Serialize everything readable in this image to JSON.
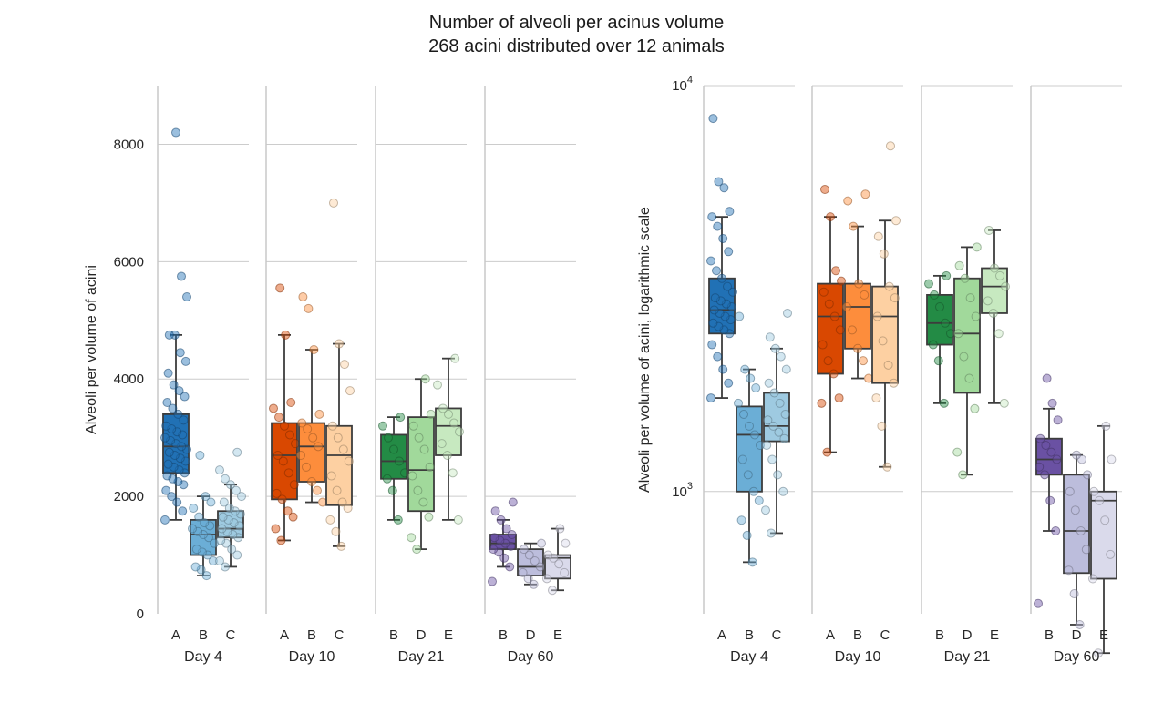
{
  "title": "Number of alveoli per acinus volume",
  "subtitle": "268 acini distributed over 12 animals",
  "chart_data": [
    {
      "type": "box",
      "yscale": "linear",
      "ylabel": "Alveoli per volume of acini",
      "ylim": [
        0,
        9000
      ],
      "yticks": [
        0,
        2000,
        4000,
        6000,
        8000
      ],
      "grid": true,
      "panels": [
        {
          "label": "Day 4",
          "groups": [
            {
              "name": "A",
              "color": "#2171b5",
              "whislo": 1600,
              "q1": 2400,
              "med": 2850,
              "q3": 3400,
              "whishi": 4750,
              "points": [
                1600,
                1750,
                1900,
                2000,
                2100,
                2200,
                2250,
                2300,
                2350,
                2400,
                2450,
                2500,
                2550,
                2600,
                2650,
                2700,
                2750,
                2800,
                2850,
                2900,
                2950,
                3000,
                3050,
                3100,
                3150,
                3200,
                3300,
                3400,
                3500,
                3600,
                3700,
                3800,
                3900,
                4100,
                4300,
                4450,
                4750,
                4750,
                5400,
                5750,
                8200
              ]
            },
            {
              "name": "B",
              "color": "#6baed6",
              "whislo": 650,
              "q1": 1000,
              "med": 1350,
              "q3": 1600,
              "whishi": 2000,
              "points": [
                650,
                750,
                800,
                900,
                1000,
                1050,
                1100,
                1200,
                1300,
                1350,
                1400,
                1450,
                1500,
                1550,
                1650,
                1800,
                1900,
                2000,
                2700
              ]
            },
            {
              "name": "C",
              "color": "#9ecae1",
              "whislo": 800,
              "q1": 1300,
              "med": 1450,
              "q3": 1750,
              "whishi": 2200,
              "points": [
                800,
                900,
                1000,
                1100,
                1200,
                1250,
                1300,
                1350,
                1400,
                1450,
                1500,
                1550,
                1600,
                1650,
                1700,
                1750,
                1800,
                1900,
                2000,
                2100,
                2200,
                2300,
                2450,
                2750
              ]
            }
          ]
        },
        {
          "label": "Day 10",
          "groups": [
            {
              "name": "A",
              "color": "#d94801",
              "whislo": 1250,
              "q1": 1950,
              "med": 2700,
              "q3": 3250,
              "whishi": 4750,
              "points": [
                1250,
                1450,
                1650,
                1750,
                1950,
                2050,
                2200,
                2400,
                2600,
                2700,
                2900,
                3050,
                3200,
                3350,
                3500,
                3600,
                4750,
                5550
              ]
            },
            {
              "name": "B",
              "color": "#fd8d3c",
              "whislo": 1900,
              "q1": 2250,
              "med": 2850,
              "q3": 3250,
              "whishi": 4500,
              "points": [
                1900,
                2100,
                2250,
                2500,
                2700,
                2850,
                3000,
                3150,
                3250,
                3400,
                4500,
                5200,
                5400
              ]
            },
            {
              "name": "C",
              "color": "#fdd0a2",
              "whislo": 1150,
              "q1": 1850,
              "med": 2700,
              "q3": 3200,
              "whishi": 4600,
              "points": [
                1150,
                1400,
                1600,
                1800,
                1900,
                2100,
                2350,
                2600,
                2800,
                3000,
                3200,
                3800,
                4250,
                4600,
                7000
              ]
            }
          ]
        },
        {
          "label": "Day 21",
          "groups": [
            {
              "name": "B",
              "color": "#238b45",
              "whislo": 1600,
              "q1": 2300,
              "med": 2600,
              "q3": 3050,
              "whishi": 3350,
              "points": [
                1600,
                2100,
                2300,
                2400,
                2600,
                2800,
                3000,
                3200,
                3350
              ]
            },
            {
              "name": "D",
              "color": "#a1d99b",
              "whislo": 1100,
              "q1": 1750,
              "med": 2450,
              "q3": 3350,
              "whishi": 4000,
              "points": [
                1100,
                1300,
                1650,
                1900,
                2100,
                2350,
                2500,
                2800,
                3000,
                3200,
                3400,
                4000
              ]
            },
            {
              "name": "E",
              "color": "#c7e9c0",
              "whislo": 1600,
              "q1": 2700,
              "med": 3200,
              "q3": 3500,
              "whishi": 4350,
              "points": [
                1600,
                2400,
                2700,
                2900,
                3100,
                3250,
                3400,
                3500,
                3900,
                4350
              ]
            }
          ]
        },
        {
          "label": "Day 60",
          "groups": [
            {
              "name": "B",
              "color": "#6a51a3",
              "whislo": 800,
              "q1": 1100,
              "med": 1200,
              "q3": 1350,
              "whishi": 1600,
              "points": [
                550,
                800,
                950,
                1050,
                1100,
                1150,
                1200,
                1250,
                1300,
                1350,
                1450,
                1600,
                1750,
                1900
              ]
            },
            {
              "name": "D",
              "color": "#bcbddc",
              "whislo": 500,
              "q1": 650,
              "med": 800,
              "q3": 1100,
              "whishi": 1200,
              "points": [
                500,
                600,
                700,
                800,
                900,
                1000,
                1100,
                1200
              ]
            },
            {
              "name": "E",
              "color": "#dadaeb",
              "whislo": 400,
              "q1": 600,
              "med": 950,
              "q3": 1000,
              "whishi": 1450,
              "points": [
                400,
                600,
                700,
                850,
                950,
                1000,
                1200,
                1450
              ]
            }
          ]
        }
      ]
    },
    {
      "type": "box",
      "yscale": "log",
      "ylabel": "Alveoli per volume of acini, logarithmic scale",
      "ylim": [
        500,
        10000
      ],
      "yticks": [
        1000,
        10000
      ],
      "ytick_labels": [
        {
          "base": "10",
          "exp": "3"
        },
        {
          "base": "10",
          "exp": "4"
        }
      ],
      "grid": true,
      "panels": [
        {
          "label": "Day 4",
          "groups": [
            {
              "name": "A",
              "color": "#2171b5",
              "whislo": 1700,
              "q1": 2450,
              "med": 2800,
              "q3": 3350,
              "whishi": 4750,
              "points": [
                1700,
                1850,
                2000,
                2150,
                2300,
                2450,
                2500,
                2550,
                2600,
                2650,
                2700,
                2750,
                2800,
                2850,
                2900,
                2950,
                3000,
                3100,
                3200,
                3350,
                3500,
                3700,
                3900,
                4200,
                4500,
                4750,
                4900,
                5600,
                5800,
                8300
              ]
            },
            {
              "name": "B",
              "color": "#6baed6",
              "whislo": 670,
              "q1": 1000,
              "med": 1380,
              "q3": 1620,
              "whishi": 2000,
              "points": [
                670,
                780,
                850,
                950,
                1000,
                1100,
                1200,
                1300,
                1380,
                1450,
                1550,
                1650,
                1800,
                1900,
                2000,
                2700
              ]
            },
            {
              "name": "C",
              "color": "#9ecae1",
              "whislo": 790,
              "q1": 1330,
              "med": 1450,
              "q3": 1750,
              "whishi": 2250,
              "points": [
                790,
                900,
                1000,
                1100,
                1200,
                1300,
                1350,
                1400,
                1450,
                1500,
                1550,
                1650,
                1750,
                1850,
                2000,
                2150,
                2250,
                2400,
                2750
              ]
            }
          ]
        },
        {
          "label": "Day 10",
          "groups": [
            {
              "name": "A",
              "color": "#d94801",
              "whislo": 1250,
              "q1": 1950,
              "med": 2700,
              "q3": 3250,
              "whishi": 4750,
              "points": [
                1250,
                1650,
                1700,
                1950,
                2100,
                2300,
                2500,
                2700,
                2900,
                3100,
                3300,
                3500,
                4750,
                5550
              ]
            },
            {
              "name": "B",
              "color": "#fd8d3c",
              "whislo": 1900,
              "q1": 2250,
              "med": 2850,
              "q3": 3250,
              "whishi": 4500,
              "points": [
                1900,
                2100,
                2250,
                2500,
                2850,
                3050,
                3250,
                4500,
                5200,
                5400
              ]
            },
            {
              "name": "C",
              "color": "#fdd0a2",
              "whislo": 1150,
              "q1": 1850,
              "med": 2700,
              "q3": 3200,
              "whishi": 4650,
              "points": [
                1150,
                1450,
                1700,
                1850,
                2050,
                2350,
                2700,
                3000,
                3200,
                3850,
                4250,
                4650,
                7100
              ]
            }
          ]
        },
        {
          "label": "Day 21",
          "groups": [
            {
              "name": "B",
              "color": "#238b45",
              "whislo": 1650,
              "q1": 2300,
              "med": 2600,
              "q3": 3050,
              "whishi": 3400,
              "points": [
                1650,
                2100,
                2300,
                2450,
                2600,
                2850,
                3050,
                3250,
                3400
              ]
            },
            {
              "name": "D",
              "color": "#a1d99b",
              "whislo": 1100,
              "q1": 1750,
              "med": 2450,
              "q3": 3350,
              "whishi": 4000,
              "points": [
                1100,
                1250,
                1600,
                1900,
                2150,
                2450,
                2700,
                3000,
                3350,
                3600,
                4000
              ]
            },
            {
              "name": "E",
              "color": "#c7e9c0",
              "whislo": 1650,
              "q1": 2750,
              "med": 3200,
              "q3": 3550,
              "whishi": 4400,
              "points": [
                1650,
                2450,
                2750,
                2950,
                3200,
                3400,
                3550,
                4400
              ]
            }
          ]
        },
        {
          "label": "Day 60",
          "groups": [
            {
              "name": "B",
              "color": "#6a51a3",
              "whislo": 800,
              "q1": 1100,
              "med": 1200,
              "q3": 1350,
              "whishi": 1600,
              "points": [
                530,
                800,
                950,
                1100,
                1150,
                1200,
                1250,
                1300,
                1350,
                1500,
                1650,
                1900
              ]
            },
            {
              "name": "D",
              "color": "#bcbddc",
              "whislo": 470,
              "q1": 630,
              "med": 800,
              "q3": 1100,
              "whishi": 1230,
              "points": [
                470,
                560,
                640,
                720,
                800,
                900,
                1000,
                1100,
                1200,
                1230
              ]
            },
            {
              "name": "E",
              "color": "#dadaeb",
              "whislo": 400,
              "q1": 610,
              "med": 950,
              "q3": 1000,
              "whishi": 1450,
              "points": [
                400,
                610,
                700,
                850,
                950,
                1000,
                1200,
                1450
              ]
            }
          ]
        }
      ]
    }
  ]
}
